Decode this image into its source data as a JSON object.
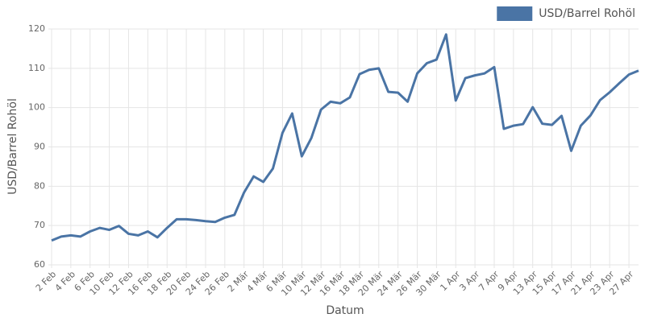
{
  "chart_data": {
    "type": "line",
    "x_label": "Datum",
    "y_label": "USD/Barrel Rohöl",
    "categories": [
      "2 Feb",
      null,
      "4 Feb",
      null,
      "6 Feb",
      null,
      "10 Feb",
      null,
      "12 Feb",
      null,
      "16 Feb",
      null,
      "18 Feb",
      null,
      "20 Feb",
      null,
      "24 Feb",
      null,
      "26 Feb",
      null,
      "2 Mär",
      null,
      "4 Mär",
      null,
      "6 Mär",
      null,
      "10 Mär",
      null,
      "12 Mär",
      null,
      "16 Mär",
      null,
      "18 Mär",
      null,
      "20 Mär",
      null,
      "24 Mär",
      null,
      "26 Mär",
      null,
      "30 Mär",
      null,
      "1 Apr",
      null,
      "3 Apr",
      null,
      "7 Apr",
      null,
      "9 Apr",
      null,
      "13 Apr",
      null,
      "15 Apr",
      null,
      "17 Apr",
      null,
      "21 Apr",
      null,
      "23 Apr",
      null,
      "27 Apr",
      null
    ],
    "series": [
      {
        "name": "USD/Barrel Rohöl",
        "color": "#4a74a5",
        "values": [
          66.2,
          67.2,
          67.5,
          67.2,
          68.5,
          69.4,
          68.9,
          69.9,
          67.9,
          67.5,
          68.5,
          67.0,
          69.4,
          71.6,
          71.6,
          71.4,
          71.1,
          70.9,
          72.0,
          72.7,
          78.4,
          82.5,
          81.1,
          84.5,
          93.6,
          98.5,
          87.6,
          92.3,
          99.5,
          101.5,
          101.1,
          102.6,
          108.5,
          109.6,
          110.0,
          104.0,
          103.8,
          101.5,
          108.7,
          111.3,
          112.2,
          118.6,
          101.8,
          107.5,
          108.2,
          108.7,
          110.3,
          94.6,
          95.4,
          95.8,
          100.1,
          95.9,
          95.6,
          97.9,
          89.0,
          95.4,
          98.0,
          101.9,
          103.9,
          106.2,
          108.4,
          109.4
        ]
      }
    ],
    "ylim": [
      60,
      120
    ],
    "yticks": [
      60,
      70,
      80,
      90,
      100,
      110,
      120
    ],
    "grid": true,
    "legend": "top-right"
  }
}
